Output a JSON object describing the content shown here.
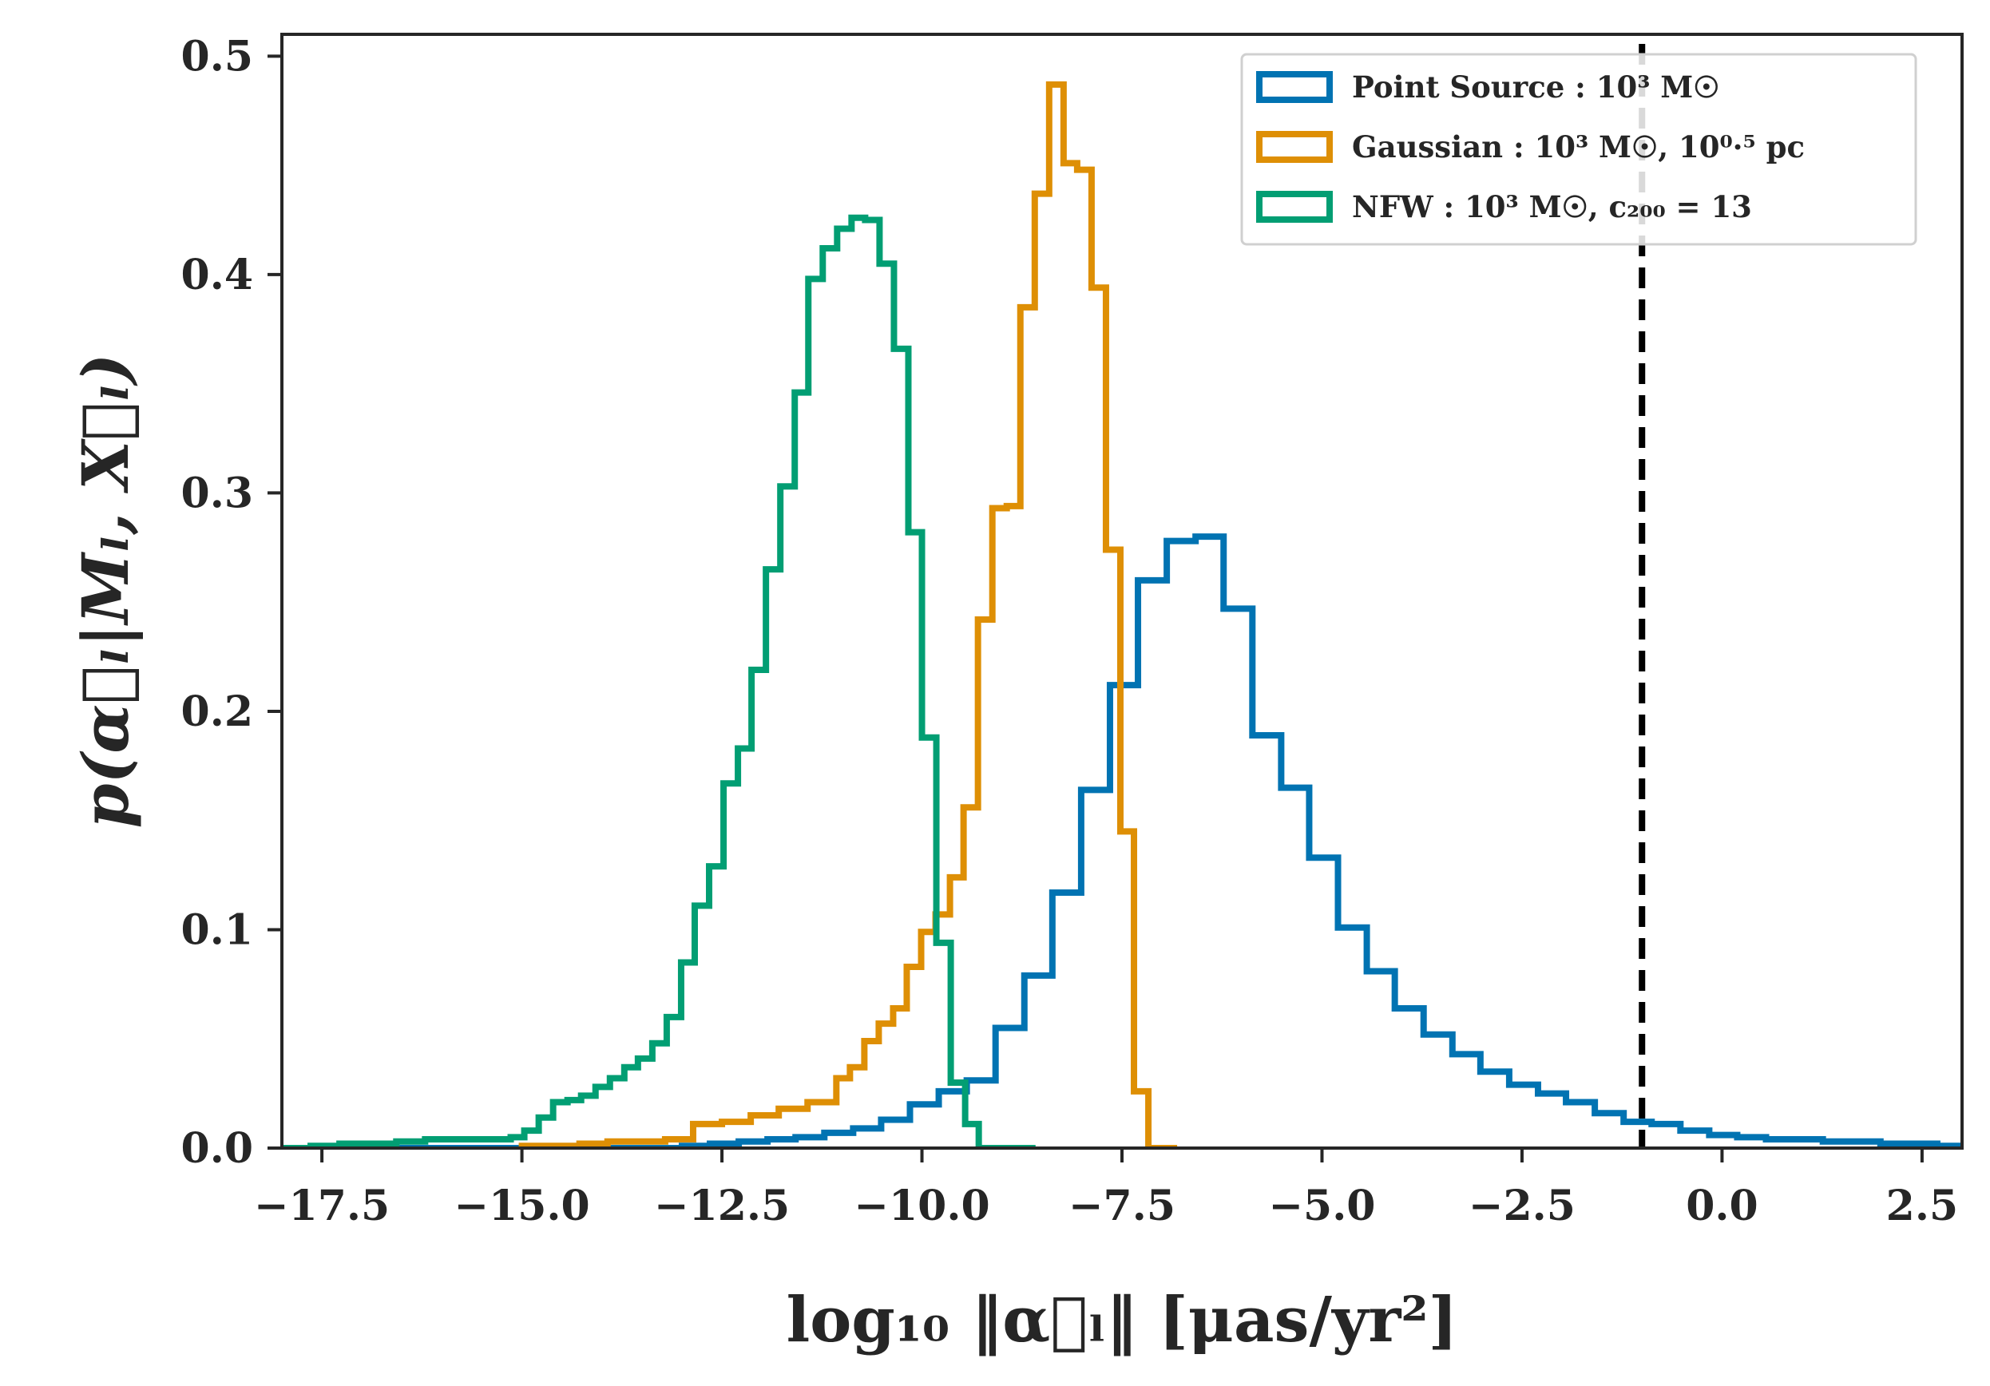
{
  "chart_data": {
    "type": "histogram",
    "xlabel": "log₁₀ ‖α⃗ₗ‖ [μas/yr²]",
    "ylabel": "p(α⃗ₗ|Mₗ, X⃗ₗ)",
    "xlim": [
      -18.0,
      3.0
    ],
    "ylim": [
      0.0,
      0.51
    ],
    "xticks": [
      -17.5,
      -15.0,
      -12.5,
      -10.0,
      -7.5,
      -5.0,
      -2.5,
      0.0,
      2.5
    ],
    "xtick_labels": [
      "−17.5",
      "−15.0",
      "−12.5",
      "−10.0",
      "−7.5",
      "−5.0",
      "−2.5",
      "0.0",
      "2.5"
    ],
    "yticks": [
      0.0,
      0.1,
      0.2,
      0.3,
      0.4,
      0.5
    ],
    "ytick_labels": [
      "0.0",
      "0.1",
      "0.2",
      "0.3",
      "0.4",
      "0.5"
    ],
    "vline": {
      "x": -1.0,
      "style": "dashed",
      "color": "#000000"
    },
    "legend_position": "top-right",
    "series": [
      {
        "name": "Point Source",
        "legend_label": "Point Source : 10³ M☉",
        "color": "#0173b2",
        "edges": [
          -18.0,
          -17.64,
          -17.28,
          -16.93,
          -16.57,
          -16.21,
          -15.86,
          -15.5,
          -15.14,
          -14.79,
          -14.43,
          -14.07,
          -13.72,
          -13.36,
          -13.0,
          -12.65,
          -12.29,
          -11.93,
          -11.58,
          -11.22,
          -10.86,
          -10.51,
          -10.15,
          -9.79,
          -9.44,
          -9.08,
          -8.72,
          -8.37,
          -8.01,
          -7.65,
          -7.3,
          -6.94,
          -6.58,
          -6.23,
          -5.87,
          -5.51,
          -5.16,
          -4.8,
          -4.44,
          -4.09,
          -3.73,
          -3.37,
          -3.02,
          -2.66,
          -2.3,
          -1.95,
          -1.59,
          -1.23,
          -0.88,
          -0.52,
          -0.16,
          0.19,
          0.55,
          0.91,
          1.26,
          1.62,
          1.98,
          2.33,
          2.69,
          3.0
        ],
        "values": [
          0.0,
          0.0,
          0.0,
          0.0,
          0.0,
          0.0,
          0.0,
          0.0,
          0.0,
          0.0,
          0.0,
          0.0,
          0.0,
          0.0,
          0.001,
          0.002,
          0.003,
          0.004,
          0.005,
          0.007,
          0.009,
          0.013,
          0.02,
          0.026,
          0.031,
          0.055,
          0.079,
          0.117,
          0.164,
          0.212,
          0.26,
          0.278,
          0.28,
          0.247,
          0.189,
          0.165,
          0.133,
          0.101,
          0.081,
          0.064,
          0.052,
          0.043,
          0.035,
          0.029,
          0.025,
          0.021,
          0.016,
          0.012,
          0.011,
          0.008,
          0.006,
          0.005,
          0.004,
          0.004,
          0.003,
          0.003,
          0.002,
          0.002,
          0.001
        ]
      },
      {
        "name": "Gaussian",
        "legend_label": "Gaussian : 10³ M☉, 10⁰·⁵ pc",
        "color": "#de8f05",
        "edges": [
          -15.0,
          -14.64,
          -14.28,
          -13.93,
          -13.57,
          -13.21,
          -12.86,
          -12.5,
          -12.14,
          -11.79,
          -11.43,
          -11.07,
          -10.9,
          -10.72,
          -10.54,
          -10.36,
          -10.19,
          -10.01,
          -9.83,
          -9.65,
          -9.48,
          -9.3,
          -9.12,
          -8.94,
          -8.77,
          -8.59,
          -8.41,
          -8.23,
          -8.06,
          -7.88,
          -7.7,
          -7.52,
          -7.35,
          -7.17,
          -6.99,
          -6.81
        ],
        "values": [
          0.001,
          0.001,
          0.002,
          0.003,
          0.003,
          0.004,
          0.011,
          0.012,
          0.015,
          0.018,
          0.021,
          0.032,
          0.037,
          0.049,
          0.057,
          0.064,
          0.083,
          0.099,
          0.107,
          0.124,
          0.156,
          0.242,
          0.293,
          0.294,
          0.385,
          0.437,
          0.487,
          0.451,
          0.448,
          0.394,
          0.274,
          0.145,
          0.026,
          0.0,
          0.0
        ]
      },
      {
        "name": "NFW",
        "legend_label": "NFW : 10³ M☉, c₂₀₀ = 13",
        "color": "#029e73",
        "edges": [
          -18.0,
          -17.64,
          -17.28,
          -16.93,
          -16.57,
          -16.21,
          -15.86,
          -15.5,
          -15.14,
          -14.97,
          -14.79,
          -14.61,
          -14.43,
          -14.26,
          -14.08,
          -13.9,
          -13.72,
          -13.55,
          -13.37,
          -13.19,
          -13.01,
          -12.84,
          -12.66,
          -12.48,
          -12.3,
          -12.13,
          -11.95,
          -11.77,
          -11.59,
          -11.42,
          -11.24,
          -11.06,
          -10.88,
          -10.71,
          -10.53,
          -10.35,
          -10.17,
          -10.0,
          -9.82,
          -9.64,
          -9.46,
          -9.29,
          -9.11,
          -8.93,
          -8.75,
          -8.58
        ],
        "values": [
          0.0,
          0.001,
          0.002,
          0.002,
          0.003,
          0.004,
          0.004,
          0.004,
          0.005,
          0.008,
          0.014,
          0.021,
          0.022,
          0.024,
          0.028,
          0.032,
          0.037,
          0.041,
          0.048,
          0.06,
          0.085,
          0.111,
          0.129,
          0.167,
          0.183,
          0.219,
          0.265,
          0.303,
          0.346,
          0.398,
          0.412,
          0.421,
          0.426,
          0.425,
          0.405,
          0.366,
          0.282,
          0.188,
          0.094,
          0.03,
          0.011,
          0.0,
          0.0,
          0.0,
          0.0
        ]
      }
    ]
  }
}
